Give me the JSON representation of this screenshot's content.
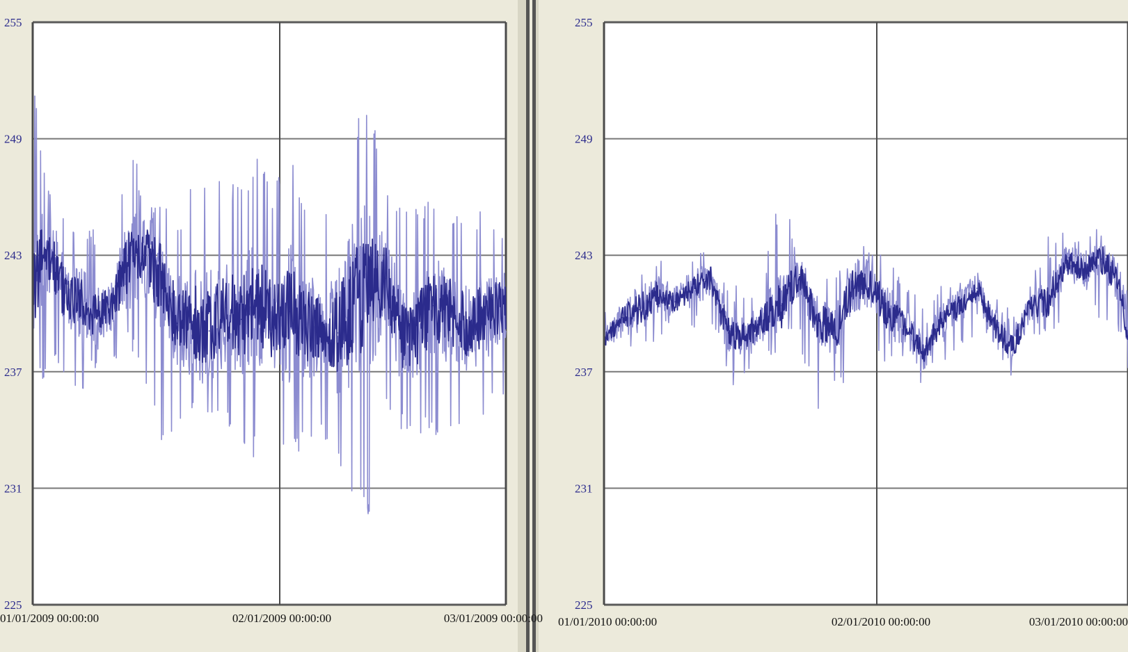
{
  "colors": {
    "background": "#eceadb",
    "plot_background": "#ffffff",
    "series_dark": "#2b2b8c",
    "series_light": "#8c8cd0",
    "grid": "#4a4a4a",
    "ytick_text": "#2b2b8c",
    "xtick_text": "#111111"
  },
  "chart_data": [
    {
      "type": "line",
      "title": "",
      "xlabel": "",
      "ylabel": "",
      "ylim": [
        225,
        255
      ],
      "yticks": [
        "255",
        "249",
        "243",
        "237",
        "231",
        "225"
      ],
      "xticks": [
        "01/01/2009 00:00:00",
        "02/01/2009 00:00:00",
        "03/01/2009 00:00:00"
      ],
      "xlim": [
        "2009-01-01",
        "2009-03-01"
      ],
      "grid": true,
      "series": [
        {
          "x": [
            "2009-01-01",
            "2009-01-03",
            "2009-01-05",
            "2009-01-07",
            "2009-01-09",
            "2009-01-11",
            "2009-01-13",
            "2009-01-15",
            "2009-01-17",
            "2009-01-19",
            "2009-01-21",
            "2009-01-23",
            "2009-01-25",
            "2009-01-27",
            "2009-01-29",
            "2009-01-31",
            "2009-02-02",
            "2009-02-04",
            "2009-02-06",
            "2009-02-08",
            "2009-02-10",
            "2009-02-12",
            "2009-02-14",
            "2009-02-16",
            "2009-02-18",
            "2009-02-20",
            "2009-02-22",
            "2009-02-24",
            "2009-02-26",
            "2009-02-28"
          ],
          "y": [
            241.5,
            243.2,
            241.0,
            240.6,
            239.8,
            240.5,
            242.8,
            243.0,
            241.7,
            239.5,
            239.6,
            239.1,
            240.3,
            239.7,
            240.8,
            239.6,
            240.1,
            239.3,
            239.4,
            239.0,
            240.6,
            241.2,
            241.8,
            238.9,
            239.2,
            240.4,
            240.1,
            239.4,
            239.8,
            240.3
          ],
          "low": [
            236.0,
            237.0,
            236.5,
            236.0,
            237.0,
            237.5,
            238.0,
            236.5,
            233.5,
            233.5,
            234.5,
            234.0,
            234.0,
            233.0,
            232.5,
            233.5,
            232.0,
            233.5,
            233.5,
            232.0,
            230.0,
            229.5,
            234.5,
            234.0,
            233.5,
            233.5,
            233.5,
            234.5,
            234.5,
            235.5
          ],
          "high": [
            252.5,
            246.5,
            245.5,
            244.0,
            244.5,
            243.5,
            249.5,
            246.0,
            246.0,
            244.5,
            247.0,
            247.5,
            246.5,
            247.0,
            248.0,
            246.5,
            248.5,
            245.5,
            244.5,
            247.0,
            249.5,
            251.5,
            246.5,
            245.5,
            246.0,
            246.0,
            245.0,
            245.5,
            245.5,
            245.0
          ]
        }
      ]
    },
    {
      "type": "line",
      "title": "",
      "xlabel": "",
      "ylabel": "",
      "ylim": [
        225,
        255
      ],
      "yticks": [
        "255",
        "249",
        "243",
        "237",
        "231",
        "225"
      ],
      "xticks": [
        "01/01/2010 00:00:00",
        "02/01/2010 00:00:00",
        "03/01/2010 00:00:00"
      ],
      "xlim": [
        "2010-01-01",
        "2010-03-01"
      ],
      "grid": true,
      "series": [
        {
          "x": [
            "2010-01-01",
            "2010-01-03",
            "2010-01-05",
            "2010-01-07",
            "2010-01-09",
            "2010-01-11",
            "2010-01-13",
            "2010-01-15",
            "2010-01-17",
            "2010-01-19",
            "2010-01-21",
            "2010-01-23",
            "2010-01-25",
            "2010-01-27",
            "2010-01-29",
            "2010-01-31",
            "2010-02-02",
            "2010-02-04",
            "2010-02-06",
            "2010-02-08",
            "2010-02-10",
            "2010-02-12",
            "2010-02-14",
            "2010-02-16",
            "2010-02-18",
            "2010-02-20",
            "2010-02-22",
            "2010-02-24",
            "2010-02-26",
            "2010-02-28",
            "2010-03-01"
          ],
          "y": [
            238.5,
            239.8,
            240.2,
            241.0,
            240.6,
            241.3,
            241.8,
            239.0,
            238.8,
            239.7,
            240.4,
            242.0,
            239.6,
            239.0,
            241.3,
            241.6,
            240.0,
            239.3,
            238.0,
            239.6,
            240.4,
            241.3,
            239.3,
            238.2,
            240.4,
            240.6,
            242.6,
            242.3,
            242.8,
            241.6,
            238.8
          ],
          "low": [
            237.0,
            238.0,
            237.5,
            238.5,
            238.5,
            239.0,
            239.5,
            236.0,
            237.0,
            237.5,
            238.0,
            238.5,
            234.5,
            236.0,
            236.5,
            238.0,
            236.5,
            237.5,
            236.0,
            237.5,
            238.0,
            239.0,
            237.5,
            235.8,
            238.0,
            238.5,
            240.0,
            240.5,
            239.5,
            239.0,
            236.5
          ],
          "high": [
            240.0,
            241.5,
            243.2,
            243.0,
            242.0,
            243.0,
            243.5,
            241.5,
            241.5,
            242.5,
            246.5,
            243.0,
            241.5,
            242.0,
            243.0,
            243.8,
            243.5,
            241.5,
            240.5,
            241.5,
            242.0,
            242.5,
            241.8,
            240.0,
            241.5,
            244.0,
            244.2,
            244.5,
            244.5,
            243.5,
            241.0
          ]
        }
      ]
    }
  ]
}
